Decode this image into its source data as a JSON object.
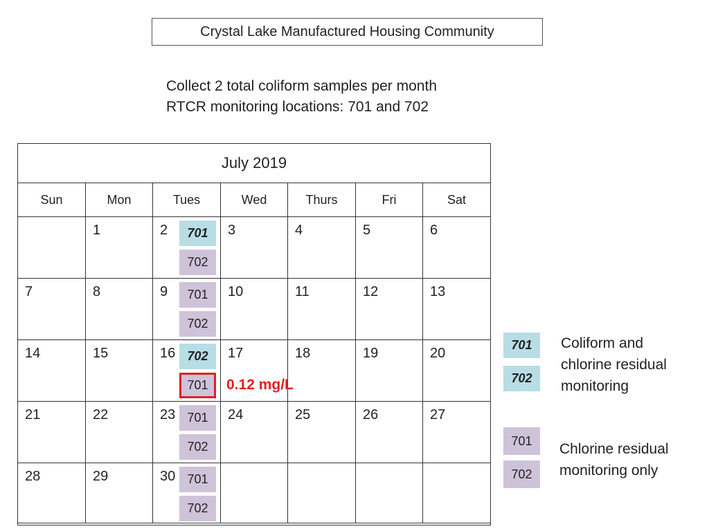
{
  "header": {
    "title": "Crystal Lake Manufactured Housing Community"
  },
  "info": {
    "line1": "Collect 2 total coliform samples per month",
    "line2": "RTCR monitoring locations: 701 and 702"
  },
  "calendar": {
    "month": "July 2019",
    "days": [
      "Sun",
      "Mon",
      "Tues",
      "Wed",
      "Thurs",
      "Fri",
      "Sat"
    ],
    "weeks": [
      [
        "",
        "1",
        "2",
        "3",
        "4",
        "5",
        "6"
      ],
      [
        "7",
        "8",
        "9",
        "10",
        "11",
        "12",
        "13"
      ],
      [
        "14",
        "15",
        "16",
        "17",
        "18",
        "19",
        "20"
      ],
      [
        "21",
        "22",
        "23",
        "24",
        "25",
        "26",
        "27"
      ],
      [
        "28",
        "29",
        "30",
        "",
        "",
        "",
        ""
      ]
    ],
    "tuesday_samples": [
      {
        "top": "701",
        "top_type": "coliform",
        "bottom": "702",
        "bottom_type": "chlorine"
      },
      {
        "top": "701",
        "top_type": "chlorine",
        "bottom": "702",
        "bottom_type": "chlorine"
      },
      {
        "top": "702",
        "top_type": "coliform",
        "bottom": "701",
        "bottom_type": "chlorine-flagged"
      },
      {
        "top": "701",
        "top_type": "chlorine",
        "bottom": "702",
        "bottom_type": "chlorine"
      },
      {
        "top": "701",
        "top_type": "chlorine",
        "bottom": "702",
        "bottom_type": "chlorine"
      }
    ],
    "flagged_reading": "0.12 mg/L"
  },
  "legend": {
    "coliform": {
      "tags": [
        "701",
        "702"
      ],
      "label_lines": [
        "Coliform and",
        "chlorine residual",
        "monitoring"
      ]
    },
    "chlorine": {
      "tags": [
        "701",
        "702"
      ],
      "label_lines": [
        "Chlorine residual",
        "monitoring only"
      ]
    }
  },
  "colors": {
    "purple": "#cec3d9",
    "blue": "#b8dde4",
    "alert": "#e02020"
  }
}
